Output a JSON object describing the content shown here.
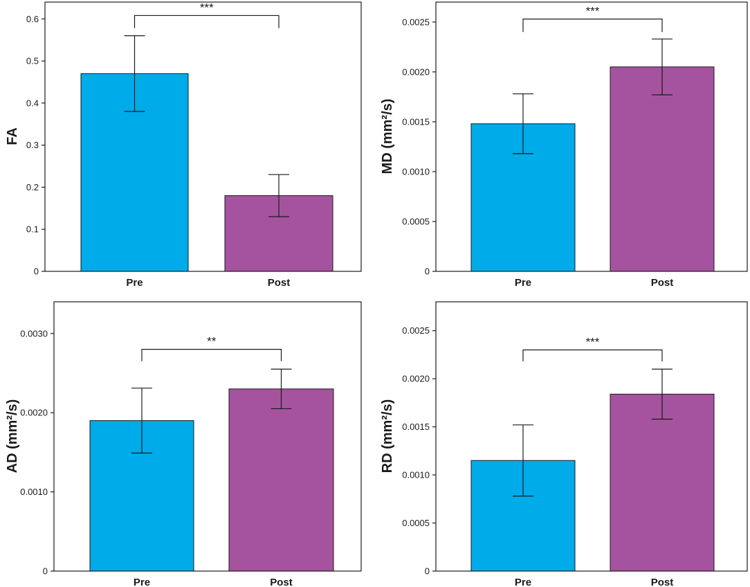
{
  "colors": {
    "pre": "#00abe9",
    "post": "#a5539f",
    "axis": "#1a1a1a"
  },
  "chart_data": [
    {
      "type": "bar",
      "ylabel": "FA",
      "categories": [
        "Pre",
        "Post"
      ],
      "values": [
        0.47,
        0.18
      ],
      "errors": [
        0.09,
        0.05
      ],
      "ylim": [
        0,
        0.64
      ],
      "yticks": [
        0,
        0.1,
        0.2,
        0.3,
        0.4,
        0.5,
        0.6
      ],
      "ytick_labels": [
        "0",
        "0.1",
        "0.2",
        "0.3",
        "0.4",
        "0.5",
        "0.6"
      ],
      "significance": {
        "label": "***",
        "bracket_value": 0.608,
        "leg_bottom": 0.578
      }
    },
    {
      "type": "bar",
      "ylabel": "MD (mm²/s)",
      "categories": [
        "Pre",
        "Post"
      ],
      "values": [
        0.00148,
        0.00205
      ],
      "errors": [
        0.0003,
        0.00028
      ],
      "ylim": [
        0,
        0.0027
      ],
      "yticks": [
        0,
        0.0005,
        0.001,
        0.0015,
        0.002,
        0.0025
      ],
      "ytick_labels": [
        "0",
        "0.0005",
        "0.0010",
        "0.0015",
        "0.0020",
        "0.0025"
      ],
      "significance": {
        "label": "***",
        "bracket_value": 0.00253,
        "leg_bottom": 0.0024
      }
    },
    {
      "type": "bar",
      "ylabel": "AD (mm²/s)",
      "categories": [
        "Pre",
        "Post"
      ],
      "values": [
        0.0019,
        0.0023
      ],
      "errors": [
        0.00041,
        0.00025
      ],
      "ylim": [
        0,
        0.0034
      ],
      "yticks": [
        0,
        0.001,
        0.002,
        0.003
      ],
      "ytick_labels": [
        "0",
        "0.0010",
        "0.0020",
        "0.0030"
      ],
      "significance": {
        "label": "**",
        "bracket_value": 0.0028,
        "leg_bottom": 0.00265
      }
    },
    {
      "type": "bar",
      "ylabel": "RD (mm²/s)",
      "categories": [
        "Pre",
        "Post"
      ],
      "values": [
        0.00115,
        0.00184
      ],
      "errors": [
        0.00037,
        0.00026
      ],
      "ylim": [
        0,
        0.0028
      ],
      "yticks": [
        0,
        0.0005,
        0.001,
        0.0015,
        0.002,
        0.0025
      ],
      "ytick_labels": [
        "0",
        "0.0005",
        "0.0010",
        "0.0015",
        "0.0020",
        "0.0025"
      ],
      "significance": {
        "label": "***",
        "bracket_value": 0.0023,
        "leg_bottom": 0.00218
      }
    }
  ]
}
